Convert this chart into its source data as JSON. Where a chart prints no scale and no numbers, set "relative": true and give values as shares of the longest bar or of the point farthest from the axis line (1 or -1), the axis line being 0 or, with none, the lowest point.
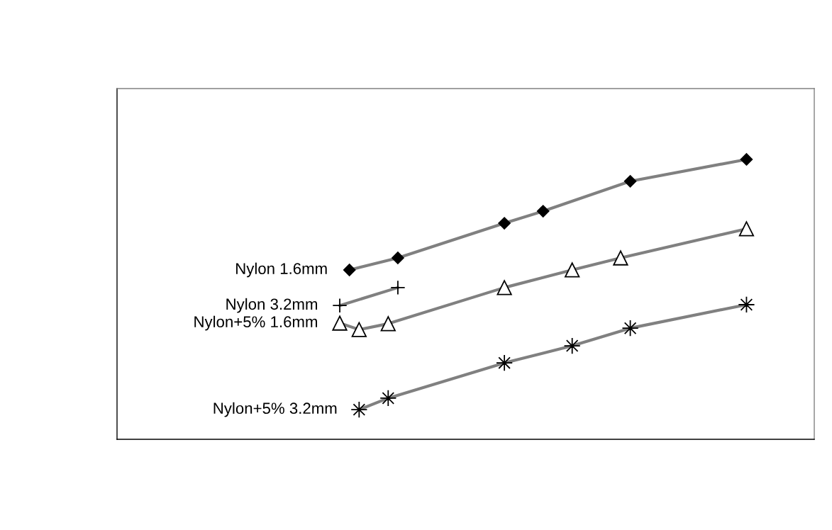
{
  "chart_data": {
    "type": "line",
    "relative": true,
    "grid": false,
    "legend": "left",
    "line_style": "solid",
    "categories": [
      null,
      null,
      null,
      null,
      null,
      null,
      null,
      null,
      null,
      null,
      null,
      null,
      null,
      null,
      null,
      null,
      null,
      null,
      null,
      null,
      null,
      null,
      null,
      null,
      null,
      null,
      null,
      null,
      null,
      null,
      null,
      null,
      null,
      null,
      null,
      null,
      null,
      null,
      null,
      null,
      null,
      null,
      null,
      null,
      null,
      null,
      null,
      null,
      null,
      null,
      null,
      null,
      null,
      null,
      null,
      null,
      null,
      null,
      null,
      null,
      null,
      null,
      null,
      null,
      null,
      null,
      null,
      null,
      null,
      null,
      null,
      null,
      null
    ],
    "series": [
      {
        "name": "Nylon 1.6mm",
        "color": "#808080",
        "marker": "diamond",
        "values": [
          null,
          null,
          null,
          null,
          null,
          null,
          null,
          null,
          null,
          null,
          null,
          null,
          null,
          null,
          null,
          null,
          null,
          null,
          null,
          null,
          null,
          null,
          null,
          null,
          0.605,
          null,
          null,
          null,
          null,
          0.648,
          null,
          null,
          null,
          null,
          null,
          null,
          null,
          null,
          null,
          null,
          0.772,
          null,
          null,
          null,
          0.815,
          null,
          null,
          null,
          null,
          null,
          null,
          null,
          null,
          0.922,
          null,
          null,
          null,
          null,
          null,
          null,
          null,
          null,
          null,
          null,
          null,
          1.0,
          null,
          null,
          null,
          null,
          null,
          null,
          null
        ]
      },
      {
        "name": "Nylon 3.2mm",
        "color": "#808080",
        "marker": "cross",
        "values": [
          null,
          null,
          null,
          null,
          null,
          null,
          null,
          null,
          null,
          null,
          null,
          null,
          null,
          null,
          null,
          null,
          null,
          null,
          null,
          null,
          null,
          null,
          null,
          0.478,
          null,
          null,
          null,
          null,
          null,
          0.542,
          null,
          null,
          null,
          null,
          null,
          null,
          null,
          null,
          null,
          null,
          null,
          null,
          null,
          null,
          null,
          null,
          null,
          null,
          null,
          null,
          null,
          null,
          null,
          null,
          null,
          null,
          null,
          null,
          null,
          null,
          null,
          null,
          null,
          null,
          null,
          null,
          null,
          null,
          null,
          null,
          null,
          null,
          null
        ]
      },
      {
        "name": "Nylon+5% 1.6mm",
        "color": "#808080",
        "marker": "triangle",
        "values": [
          null,
          null,
          null,
          null,
          null,
          null,
          null,
          null,
          null,
          null,
          null,
          null,
          null,
          null,
          null,
          null,
          null,
          null,
          null,
          null,
          null,
          null,
          null,
          0.415,
          null,
          0.392,
          null,
          null,
          0.413,
          null,
          null,
          null,
          null,
          null,
          null,
          null,
          null,
          null,
          null,
          null,
          0.542,
          null,
          null,
          null,
          null,
          null,
          null,
          0.605,
          null,
          null,
          null,
          null,
          0.648,
          null,
          null,
          null,
          null,
          null,
          null,
          null,
          null,
          null,
          null,
          null,
          null,
          0.752,
          null,
          null,
          null,
          null,
          null,
          null,
          null
        ]
      },
      {
        "name": "Nylon+5% 3.2mm",
        "color": "#808080",
        "marker": "star",
        "values": [
          null,
          null,
          null,
          null,
          null,
          null,
          null,
          null,
          null,
          null,
          null,
          null,
          null,
          null,
          null,
          null,
          null,
          null,
          null,
          null,
          null,
          null,
          null,
          null,
          null,
          0.106,
          null,
          null,
          0.147,
          null,
          null,
          null,
          null,
          null,
          null,
          null,
          null,
          null,
          null,
          null,
          0.273,
          null,
          null,
          null,
          null,
          null,
          null,
          0.334,
          null,
          null,
          null,
          null,
          null,
          0.397,
          null,
          null,
          null,
          null,
          null,
          null,
          null,
          null,
          null,
          null,
          null,
          0.481,
          null,
          null,
          null,
          null,
          null,
          null,
          null
        ]
      }
    ]
  }
}
